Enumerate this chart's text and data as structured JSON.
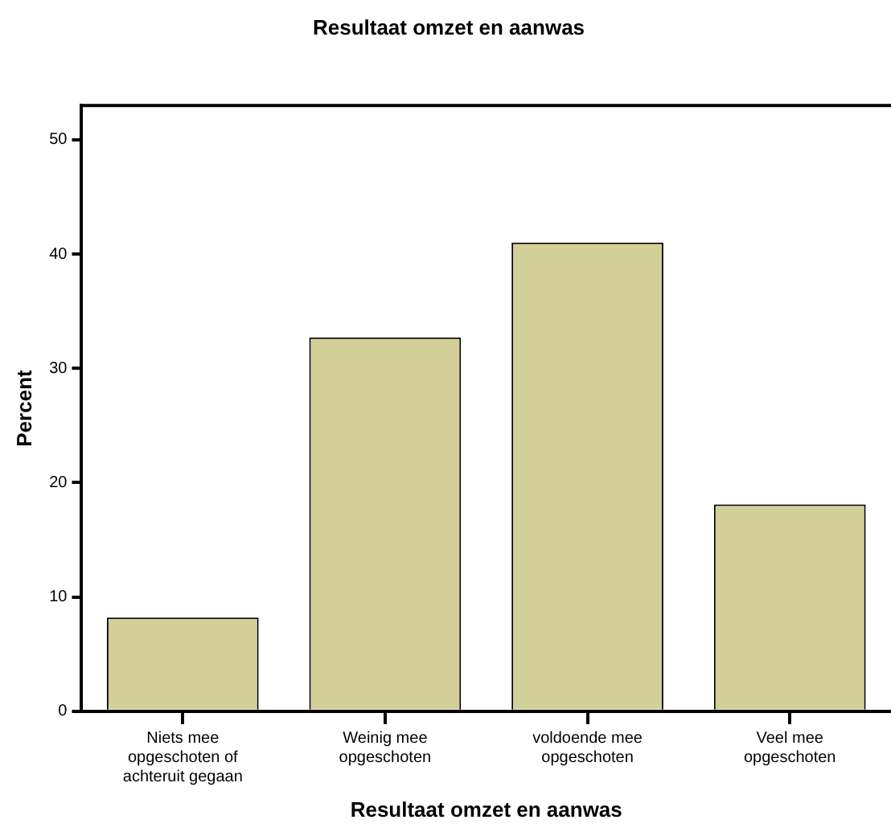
{
  "chart_data": {
    "type": "bar",
    "title": "Resultaat omzet en aanwas",
    "xlabel": "Resultaat omzet en aanwas",
    "ylabel": "Percent",
    "categories": [
      "Niets mee opgeschoten of achteruit gegaan",
      "Weinig mee opgeschoten",
      "voldoende mee opgeschoten",
      "Veel mee opgeschoten"
    ],
    "values": [
      8.2,
      32.7,
      41.0,
      18.1
    ],
    "color": "#d3cf98",
    "ylim": [
      0,
      53
    ],
    "yticks": [
      0,
      10,
      20,
      30,
      40,
      50
    ],
    "grid": false,
    "legend": false
  }
}
